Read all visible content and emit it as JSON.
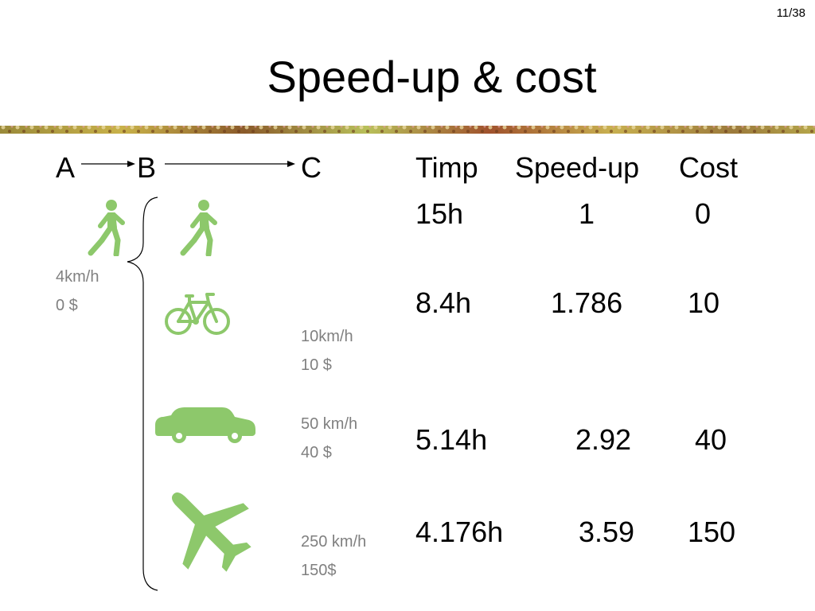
{
  "page_number": "11/38",
  "title": "Speed-up & cost",
  "route": {
    "a": "A",
    "b": "B",
    "c": "C"
  },
  "walk_info": {
    "speed": "4km/h",
    "cost": "0 $"
  },
  "bike_info": {
    "speed": "10km/h",
    "cost": "10 $"
  },
  "car_info": {
    "speed": "50 km/h",
    "cost": "40 $"
  },
  "plane_info": {
    "speed": "250 km/h",
    "cost": "150$"
  },
  "table": {
    "headers": {
      "timp": "Timp",
      "speedup": "Speed-up",
      "cost": "Cost"
    },
    "rows": [
      {
        "timp": "15h",
        "speedup": "1",
        "cost": "0"
      },
      {
        "timp": "8.4h",
        "speedup": "1.786",
        "cost": "10"
      },
      {
        "timp": "5.14h",
        "speedup": "2.92",
        "cost": "40"
      },
      {
        "timp": "4.176h",
        "speedup": "3.59",
        "cost": "150"
      }
    ]
  },
  "colors": {
    "icon_green": "#8dc86b",
    "muted_text": "#808080"
  },
  "icons": [
    "walker-icon",
    "walker-icon",
    "bicycle-icon",
    "car-icon",
    "airplane-icon"
  ]
}
